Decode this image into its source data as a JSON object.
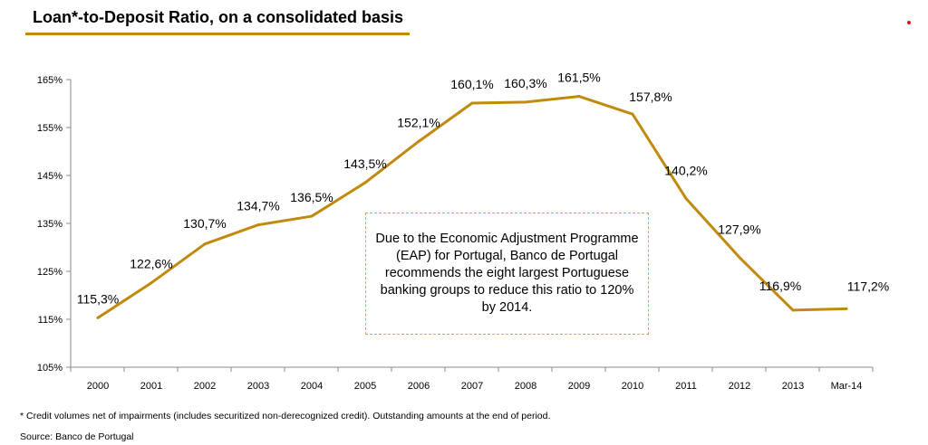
{
  "title": "Loan*-to-Deposit Ratio, on a consolidated basis",
  "colors": {
    "line": "#C08A0C",
    "title_rule": "#C08A0C",
    "axis": "#888888",
    "note_border": "#d9a25a",
    "corner_dot": "#e01010"
  },
  "chart_data": {
    "type": "line",
    "title": "Loan*-to-Deposit Ratio, on a consolidated basis",
    "xlabel": "",
    "ylabel": "",
    "categories": [
      "2000",
      "2001",
      "2002",
      "2003",
      "2004",
      "2005",
      "2006",
      "2007",
      "2008",
      "2009",
      "2010",
      "2011",
      "2012",
      "2013",
      "Mar-14"
    ],
    "series": [
      {
        "values": [
          115.3,
          122.6,
          130.7,
          134.7,
          136.5,
          143.5,
          152.1,
          160.1,
          160.3,
          161.5,
          157.8,
          140.2,
          127.9,
          116.9,
          117.2
        ]
      }
    ],
    "data_labels": [
      "115,3%",
      "122,6%",
      "130,7%",
      "134,7%",
      "136,5%",
      "143,5%",
      "152,1%",
      "160,1%",
      "160,3%",
      "161,5%",
      "157,8%",
      "140,2%",
      "127,9%",
      "116,9%",
      "117,2%"
    ],
    "ylim": [
      105,
      165
    ],
    "yticks": [
      105,
      115,
      125,
      135,
      145,
      155,
      165
    ],
    "ytick_labels": [
      "105%",
      "115%",
      "125%",
      "135%",
      "145%",
      "155%",
      "165%"
    ],
    "grid": false,
    "legend": "none"
  },
  "annotation": "Due to the Economic Adjustment Programme (EAP) for Portugal, Banco de Portugal recommends the eight largest Portuguese banking groups to reduce this ratio to 120% by 2014.",
  "footnote": "* Credit volumes net of impairments (includes securitized non-derecognized credit). Outstanding amounts at the end of period.",
  "source": "Source: Banco de Portugal"
}
